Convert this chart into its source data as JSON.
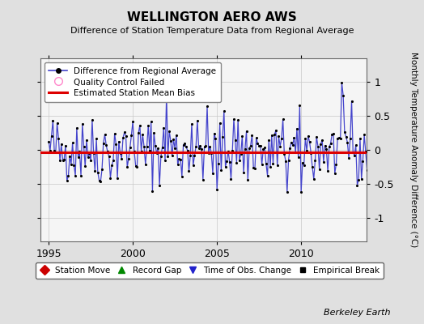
{
  "title": "WELLINGTON AERO AWS",
  "subtitle": "Difference of Station Temperature Data from Regional Average",
  "ylabel": "Monthly Temperature Anomaly Difference (°C)",
  "xlim": [
    1994.5,
    2013.9
  ],
  "ylim": [
    -1.35,
    1.35
  ],
  "yticks": [
    -1,
    -0.5,
    0,
    0.5,
    1
  ],
  "xticks": [
    1995,
    2000,
    2005,
    2010
  ],
  "bias_value": -0.03,
  "line_color": "#4444cc",
  "dot_color": "#000000",
  "bias_color": "#dd0000",
  "bg_color": "#e0e0e0",
  "plot_bg_color": "#f5f5f5",
  "berkeley_earth_text": "Berkeley Earth",
  "seed": 42,
  "n_points": 228
}
